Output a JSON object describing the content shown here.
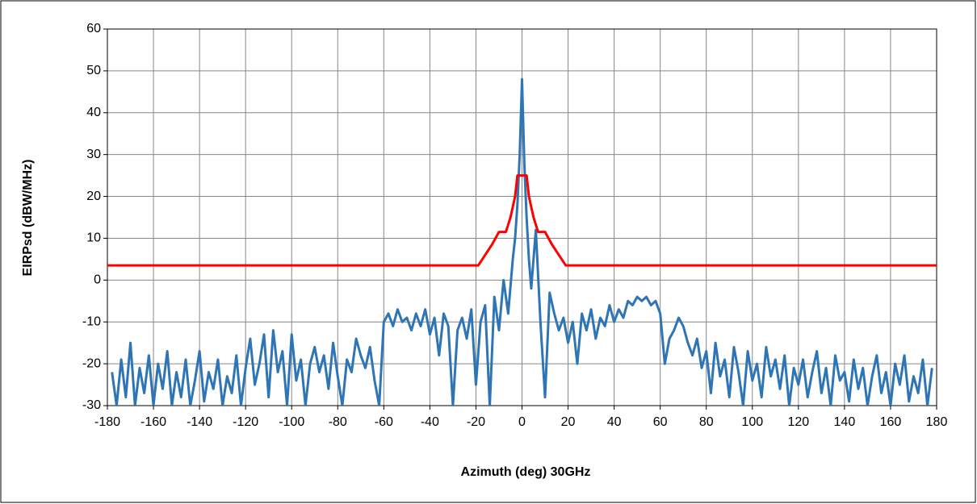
{
  "chart_data": {
    "type": "line",
    "xlabel": "Azimuth (deg) 30GHz",
    "ylabel": "EIRPsd (dBW/MHz)",
    "xlim": [
      -180,
      180
    ],
    "xticks": [
      -180,
      -160,
      -140,
      -120,
      -100,
      -80,
      -60,
      -40,
      -20,
      0,
      20,
      40,
      60,
      80,
      100,
      120,
      140,
      160,
      180
    ],
    "ylim": [
      -30,
      60
    ],
    "yticks": [
      -30,
      -20,
      -10,
      0,
      10,
      20,
      30,
      40,
      50,
      60
    ],
    "grid": true,
    "series": [
      {
        "color": "#2e75b6",
        "x": [
          -178,
          -176,
          -174,
          -172,
          -170,
          -168,
          -166,
          -164,
          -162,
          -160,
          -158,
          -156,
          -154,
          -152,
          -150,
          -148,
          -146,
          -144,
          -142,
          -140,
          -138,
          -136,
          -134,
          -132,
          -130,
          -128,
          -126,
          -124,
          -122,
          -120,
          -118,
          -116,
          -114,
          -112,
          -110,
          -108,
          -106,
          -104,
          -102,
          -100,
          -98,
          -96,
          -94,
          -92,
          -90,
          -88,
          -86,
          -84,
          -82,
          -80,
          -78,
          -76,
          -74,
          -72,
          -70,
          -68,
          -66,
          -64,
          -62,
          -60,
          -58,
          -56,
          -54,
          -52,
          -50,
          -48,
          -46,
          -44,
          -42,
          -40,
          -38,
          -36,
          -34,
          -32,
          -30,
          -28,
          -26,
          -24,
          -22,
          -20,
          -18,
          -16,
          -14,
          -12,
          -10,
          -8,
          -6,
          -4,
          -3,
          -2,
          -1,
          0,
          1,
          2,
          3,
          4,
          6,
          8,
          10,
          12,
          14,
          16,
          18,
          20,
          22,
          24,
          26,
          28,
          30,
          32,
          34,
          36,
          38,
          40,
          42,
          44,
          46,
          48,
          50,
          52,
          54,
          56,
          58,
          60,
          62,
          64,
          66,
          68,
          70,
          72,
          74,
          76,
          78,
          80,
          82,
          84,
          86,
          88,
          90,
          92,
          94,
          96,
          98,
          100,
          102,
          104,
          106,
          108,
          110,
          112,
          114,
          116,
          118,
          120,
          122,
          124,
          126,
          128,
          130,
          132,
          134,
          136,
          138,
          140,
          142,
          144,
          146,
          148,
          150,
          152,
          154,
          156,
          158,
          160,
          162,
          164,
          166,
          168,
          170,
          172,
          174,
          176,
          178
        ],
        "values": [
          -22,
          -30,
          -19,
          -28,
          -15,
          -30,
          -21,
          -27,
          -18,
          -30,
          -20,
          -26,
          -17,
          -30,
          -22,
          -28,
          -19,
          -30,
          -24,
          -17,
          -29,
          -22,
          -26,
          -19,
          -30,
          -23,
          -27,
          -18,
          -30,
          -21,
          -14,
          -25,
          -20,
          -13,
          -28,
          -12,
          -22,
          -17,
          -30,
          -13,
          -24,
          -19,
          -30,
          -20,
          -16,
          -22,
          -18,
          -26,
          -15,
          -23,
          -30,
          -19,
          -22,
          -14,
          -18,
          -21,
          -16,
          -24,
          -30,
          -10,
          -8,
          -11,
          -7,
          -10,
          -9,
          -12,
          -8,
          -11,
          -7,
          -13,
          -9,
          -18,
          -8,
          -11,
          -30,
          -12,
          -9,
          -14,
          -7,
          -25,
          -10,
          -6,
          -30,
          -4,
          -12,
          0,
          -8,
          5,
          10,
          18,
          30,
          48,
          28,
          15,
          5,
          -2,
          12,
          -10,
          -28,
          -3,
          -8,
          -12,
          -9,
          -15,
          -10,
          -20,
          -8,
          -12,
          -7,
          -14,
          -9,
          -11,
          -6,
          -10,
          -7,
          -9,
          -5,
          -6,
          -4,
          -5,
          -4,
          -6,
          -5,
          -8,
          -20,
          -14,
          -12,
          -9,
          -11,
          -15,
          -18,
          -14,
          -21,
          -17,
          -27,
          -15,
          -23,
          -19,
          -28,
          -16,
          -22,
          -30,
          -17,
          -24,
          -20,
          -28,
          -16,
          -23,
          -19,
          -26,
          -18,
          -30,
          -21,
          -25,
          -19,
          -28,
          -22,
          -17,
          -27,
          -21,
          -30,
          -18,
          -24,
          -22,
          -29,
          -19,
          -26,
          -21,
          -30,
          -23,
          -18,
          -27,
          -22,
          -30,
          -20,
          -25,
          -18,
          -29,
          -23,
          -27,
          -19,
          -30,
          -21
        ]
      },
      {
        "color": "#ff0000",
        "x": [
          -180,
          -19,
          -16,
          -13,
          -10,
          -7,
          -5,
          -3,
          -2,
          2,
          3,
          5,
          7,
          10,
          13,
          16,
          19,
          180
        ],
        "values": [
          3.5,
          3.5,
          6,
          8.5,
          11.5,
          11.5,
          15,
          20,
          25,
          25,
          20,
          15,
          11.5,
          11.5,
          8.5,
          6,
          3.5,
          3.5
        ]
      }
    ]
  }
}
